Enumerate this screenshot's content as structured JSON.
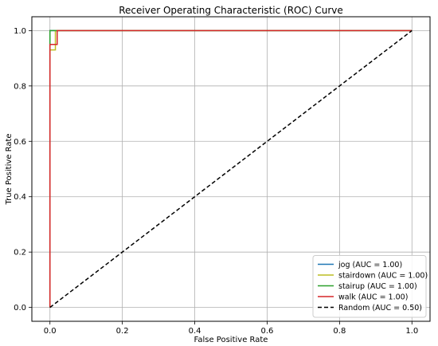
{
  "chart_data": {
    "type": "line",
    "title": "Receiver Operating Characteristic (ROC) Curve",
    "xlabel": "False Positive Rate",
    "ylabel": "True Positive Rate",
    "xlim": [
      -0.05,
      1.05
    ],
    "ylim": [
      -0.05,
      1.05
    ],
    "xticks": [
      0.0,
      0.2,
      0.4,
      0.6,
      0.8,
      1.0
    ],
    "yticks": [
      0.0,
      0.2,
      0.4,
      0.6,
      0.8,
      1.0
    ],
    "xtick_labels": [
      "0.0",
      "0.2",
      "0.4",
      "0.6",
      "0.8",
      "1.0"
    ],
    "ytick_labels": [
      "0.0",
      "0.2",
      "0.4",
      "0.6",
      "0.8",
      "1.0"
    ],
    "grid": true,
    "legend_position": "bottom-right",
    "series": [
      {
        "name": "jog (AUC = 1.00)",
        "color": "#1f77b4",
        "dash": false,
        "x": [
          0.0,
          0.0,
          1.0
        ],
        "y": [
          0.0,
          1.0,
          1.0
        ]
      },
      {
        "name": "stairdown (AUC = 1.00)",
        "color": "#bcbd22",
        "dash": false,
        "x": [
          0.0,
          0.0,
          0.015,
          0.015,
          1.0
        ],
        "y": [
          0.0,
          0.93,
          0.93,
          1.0,
          1.0
        ]
      },
      {
        "name": "stairup (AUC = 1.00)",
        "color": "#2ca02c",
        "dash": false,
        "x": [
          0.0,
          0.0,
          0.02,
          0.02,
          1.0
        ],
        "y": [
          0.0,
          1.0,
          1.0,
          1.0,
          1.0
        ]
      },
      {
        "name": "walk (AUC = 1.00)",
        "color": "#d62728",
        "dash": false,
        "x": [
          0.0,
          0.0,
          0.02,
          0.02,
          1.0
        ],
        "y": [
          0.0,
          0.95,
          0.95,
          1.0,
          1.0
        ]
      },
      {
        "name": "Random (AUC = 0.50)",
        "color": "#000000",
        "dash": true,
        "x": [
          0.0,
          1.0
        ],
        "y": [
          0.0,
          1.0
        ]
      }
    ]
  }
}
